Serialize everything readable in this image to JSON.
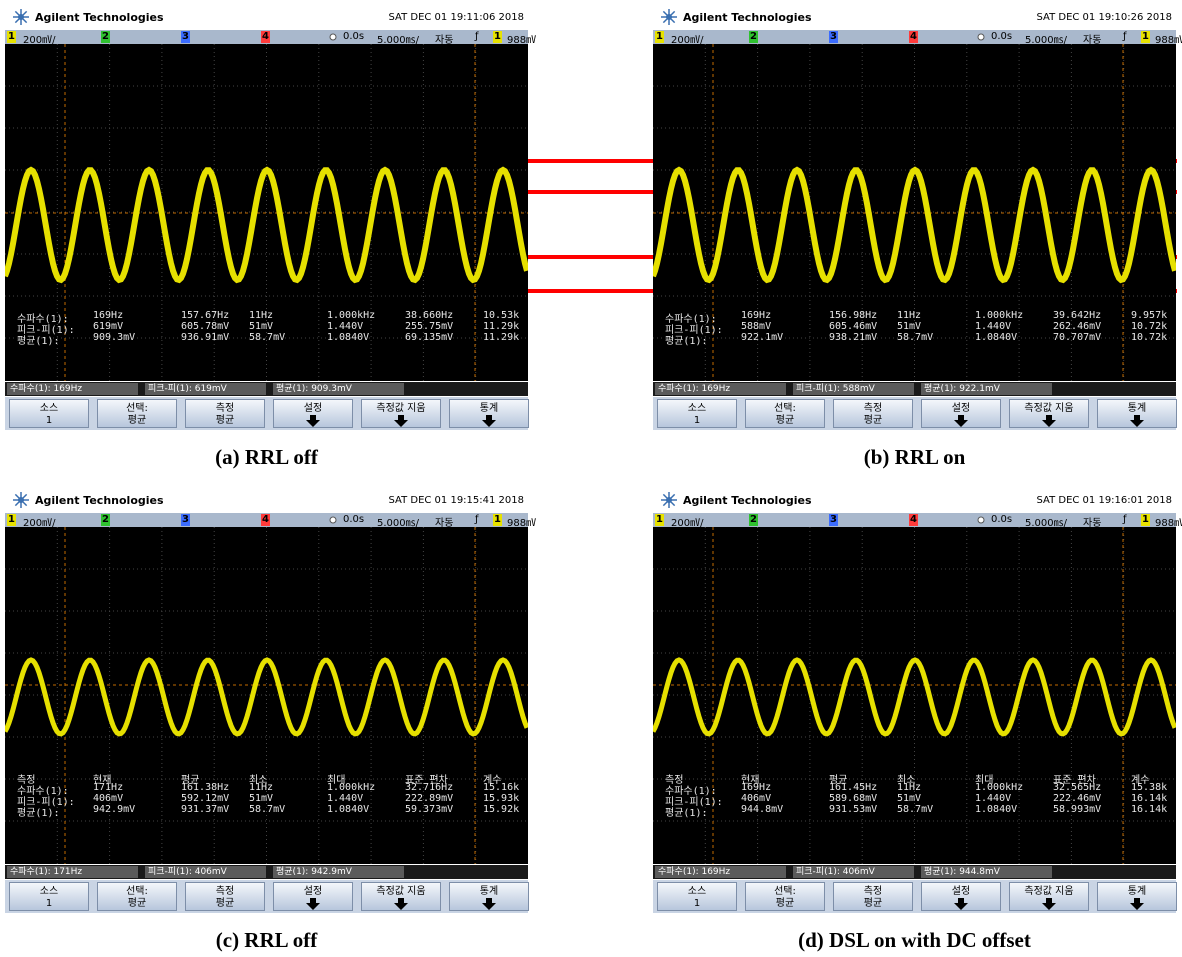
{
  "common": {
    "brand": "Agilent Technologies",
    "status_bar": [
      "1",
      "200㎷/",
      "2",
      "3",
      "4",
      "0.0s",
      "5.000㎳/",
      "자동",
      "ƒ",
      "1",
      "988㎷"
    ],
    "softkeys": [
      {
        "label": "소스",
        "value": "1"
      },
      {
        "label": "선택:",
        "value": "평균"
      },
      {
        "label": "측정",
        "value": "평균"
      },
      {
        "label": "설정"
      },
      {
        "label": "측정값 지움"
      },
      {
        "label": "통계"
      }
    ]
  },
  "panels": [
    {
      "caption": "(a) RRL off",
      "timestamp": "SAT DEC 01 19:11:06 2018",
      "table": {
        "rows": [
          [
            "수파수(1):",
            "169Hz",
            "157.67Hz",
            "11Hz",
            "1.000kHz",
            "38.660Hz",
            "10.53k"
          ],
          [
            "피크-피(1):",
            "619mV",
            "605.78mV",
            "51mV",
            "1.440V",
            "255.75mV",
            "11.29k"
          ],
          [
            "평균(1):",
            "909.3mV",
            "936.91mV",
            "58.7mV",
            "1.0840V",
            "69.135mV",
            "11.29k"
          ]
        ]
      },
      "readouts": [
        "수파수(1): 169Hz",
        "피크-피(1): 619mV",
        "평균(1): 909.3mV"
      ]
    },
    {
      "caption": "(b) RRL on",
      "timestamp": "SAT DEC 01 19:10:26 2018",
      "table": {
        "rows": [
          [
            "수파수(1):",
            "169Hz",
            "156.98Hz",
            "11Hz",
            "1.000kHz",
            "39.642Hz",
            "9.957k"
          ],
          [
            "피크-피(1):",
            "588mV",
            "605.46mV",
            "51mV",
            "1.440V",
            "262.46mV",
            "10.72k"
          ],
          [
            "평균(1):",
            "922.1mV",
            "938.21mV",
            "58.7mV",
            "1.0840V",
            "70.707mV",
            "10.72k"
          ]
        ]
      },
      "readouts": [
        "수파수(1): 169Hz",
        "피크-피(1): 588mV",
        "평균(1): 922.1mV"
      ]
    },
    {
      "caption": "(c) RRL off",
      "timestamp": "SAT DEC 01 19:15:41 2018",
      "table": {
        "header": [
          "측정",
          "현재",
          "평균",
          "최소",
          "최대",
          "표준 편차",
          "계수"
        ],
        "rows": [
          [
            "수파수(1):",
            "171Hz",
            "161.38Hz",
            "11Hz",
            "1.000kHz",
            "32.716Hz",
            "15.16k"
          ],
          [
            "피크-피(1):",
            "406mV",
            "592.12mV",
            "51mV",
            "1.440V",
            "222.89mV",
            "15.93k"
          ],
          [
            "평균(1):",
            "942.9mV",
            "931.37mV",
            "58.7mV",
            "1.0840V",
            "59.373mV",
            "15.92k"
          ]
        ]
      },
      "readouts": [
        "수파수(1): 171Hz",
        "피크-피(1): 406mV",
        "평균(1): 942.9mV"
      ]
    },
    {
      "caption": "(d) DSL on with DC offset",
      "timestamp": "SAT DEC 01 19:16:01 2018",
      "table": {
        "header": [
          "측정",
          "현재",
          "평균",
          "최소",
          "최대",
          "표준 편차",
          "계수"
        ],
        "rows": [
          [
            "수파수(1):",
            "169Hz",
            "161.45Hz",
            "11Hz",
            "1.000kHz",
            "32.565Hz",
            "15.38k"
          ],
          [
            "피크-피(1):",
            "406mV",
            "589.68mV",
            "51mV",
            "1.440V",
            "222.46mV",
            "16.14k"
          ],
          [
            "평균(1):",
            "944.8mV",
            "931.53mV",
            "58.7mV",
            "1.0840V",
            "58.993mV",
            "16.14k"
          ]
        ]
      },
      "readouts": [
        "수파수(1): 169Hz",
        "피크-피(1): 406mV",
        "평균(1): 944.8mV"
      ]
    }
  ]
}
